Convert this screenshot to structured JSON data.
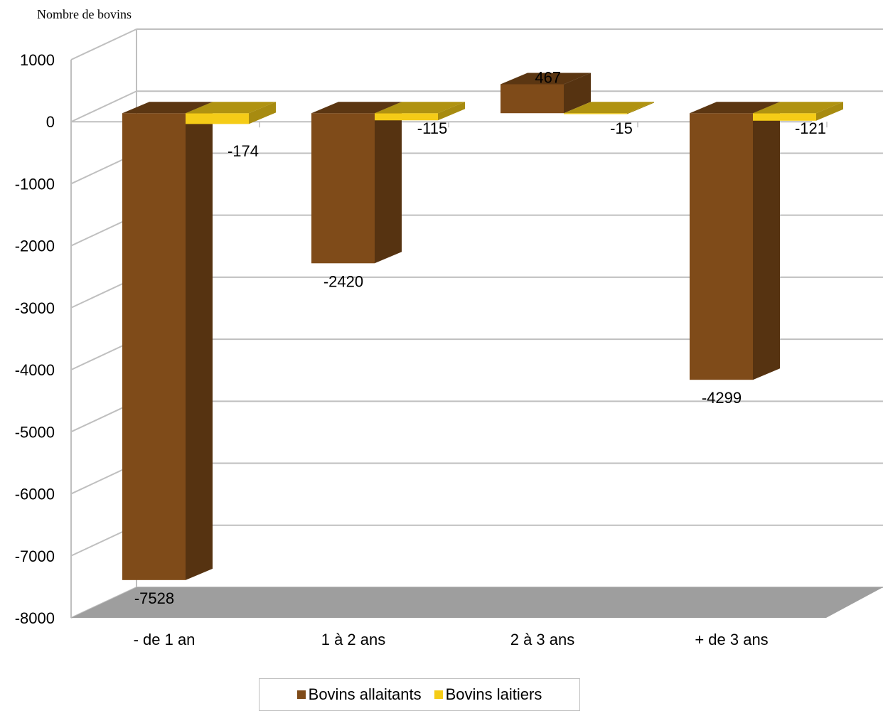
{
  "chart_data": {
    "type": "bar",
    "ylabel": "Nombre de bovins",
    "categories": [
      "- de 1 an",
      "1 à 2 ans",
      "2 à 3 ans",
      "+ de 3 ans"
    ],
    "series": [
      {
        "name": "Bovins allaitants",
        "values": [
          -7528,
          -2420,
          467,
          -4299
        ],
        "color": "#7f4b19"
      },
      {
        "name": "Bovins laitiers",
        "values": [
          -174,
          -115,
          -15,
          -121
        ],
        "color": "#f5cc17"
      }
    ],
    "ylim": [
      -8000,
      1000
    ],
    "yticks": [
      1000,
      0,
      -1000,
      -2000,
      -3000,
      -4000,
      -5000,
      -6000,
      -7000,
      -8000
    ],
    "grid": true,
    "legend": "bottom",
    "three_d": true
  }
}
